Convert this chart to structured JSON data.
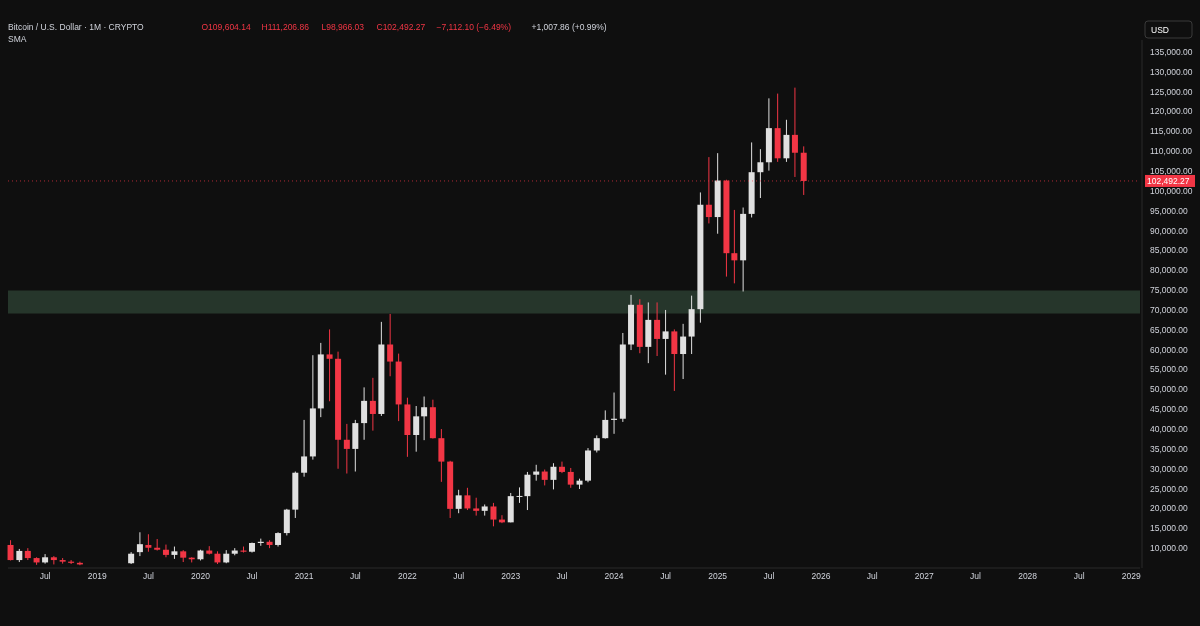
{
  "chart_data": {
    "type": "candlestick",
    "title": "Bitcoin / U.S. Dollar · 1M · CRYPTO",
    "ylabel": "USD",
    "annotations": [
      "O109,604.14",
      "H111,206.86",
      "L98,966.03",
      "C102,492.27",
      "−7,112.10 (−6.49%)",
      "+1,007.86 (+0.99%)",
      "SMA"
    ],
    "x": [
      "2018-03",
      "2018-04",
      "2018-05",
      "2018-06",
      "2018-07",
      "2018-08",
      "2018-09",
      "2018-10",
      "2018-11",
      "2019-05",
      "2019-06",
      "2019-07",
      "2019-08",
      "2019-09",
      "2019-10",
      "2019-11",
      "2019-12",
      "2020-01",
      "2020-02",
      "2020-03",
      "2020-04",
      "2020-05",
      "2020-06",
      "2020-07",
      "2020-08",
      "2020-09",
      "2020-10",
      "2020-11",
      "2020-12",
      "2021-01",
      "2021-02",
      "2021-03",
      "2021-04",
      "2021-05",
      "2021-06",
      "2021-07",
      "2021-08",
      "2021-09",
      "2021-10",
      "2021-11",
      "2021-12",
      "2022-01",
      "2022-02",
      "2022-03",
      "2022-04",
      "2022-05",
      "2022-06",
      "2022-07",
      "2022-08",
      "2022-09",
      "2022-10",
      "2022-11",
      "2022-12",
      "2023-01",
      "2023-02",
      "2023-03",
      "2023-04",
      "2023-05",
      "2023-06",
      "2023-07",
      "2023-08",
      "2023-09",
      "2023-10",
      "2023-11",
      "2023-12",
      "2024-01",
      "2024-02",
      "2024-03",
      "2024-04",
      "2024-05",
      "2024-06",
      "2024-07",
      "2024-08",
      "2024-09",
      "2024-10",
      "2024-11",
      "2024-12",
      "2025-01",
      "2025-02",
      "2025-03",
      "2025-04",
      "2025-05",
      "2025-06",
      "2025-07",
      "2025-08",
      "2025-09",
      "2025-10",
      "2025-11"
    ],
    "ohlc": [
      [
        10800,
        12000,
        6900,
        7000
      ],
      [
        7000,
        9800,
        6500,
        9300
      ],
      [
        9300,
        10000,
        7000,
        7500
      ],
      [
        7500,
        7700,
        5800,
        6400
      ],
      [
        6400,
        8500,
        6100,
        7700
      ],
      [
        7700,
        8000,
        5900,
        7000
      ],
      [
        7000,
        7500,
        6100,
        6600
      ],
      [
        6600,
        7000,
        6000,
        6300
      ],
      [
        6300,
        6600,
        5700,
        5900
      ],
      [
        6200,
        9000,
        6000,
        8600
      ],
      [
        9000,
        14000,
        8000,
        11000
      ],
      [
        10800,
        13500,
        9100,
        10100
      ],
      [
        10100,
        12300,
        9400,
        9600
      ],
      [
        9600,
        10900,
        7700,
        8300
      ],
      [
        8300,
        10400,
        7300,
        9200
      ],
      [
        9200,
        9500,
        6500,
        7600
      ],
      [
        7600,
        7700,
        6400,
        7200
      ],
      [
        7200,
        9600,
        6900,
        9400
      ],
      [
        9400,
        10500,
        8400,
        8600
      ],
      [
        8600,
        9200,
        6000,
        6400
      ],
      [
        6400,
        9500,
        6200,
        8600
      ],
      [
        8600,
        10000,
        8200,
        9400
      ],
      [
        9400,
        10400,
        8900,
        9100
      ],
      [
        9100,
        11400,
        8900,
        11300
      ],
      [
        11300,
        12400,
        10600,
        11600
      ],
      [
        11600,
        12000,
        10000,
        10800
      ],
      [
        10800,
        14000,
        10400,
        13800
      ],
      [
        13800,
        19900,
        13200,
        19700
      ],
      [
        19700,
        29300,
        17600,
        29000
      ],
      [
        29000,
        42300,
        28000,
        33100
      ],
      [
        33100,
        58600,
        32300,
        45200
      ],
      [
        45200,
        61700,
        43000,
        58800
      ],
      [
        58800,
        65100,
        47000,
        57700
      ],
      [
        57700,
        59500,
        30000,
        37300
      ],
      [
        37300,
        41300,
        28800,
        35000
      ],
      [
        35000,
        42300,
        29300,
        41500
      ],
      [
        41500,
        50500,
        37300,
        47100
      ],
      [
        47100,
        52900,
        39600,
        43800
      ],
      [
        43800,
        67000,
        43300,
        61300
      ],
      [
        61300,
        69000,
        53300,
        57000
      ],
      [
        57000,
        59000,
        42000,
        46200
      ],
      [
        46200,
        47900,
        33000,
        38500
      ],
      [
        38500,
        45800,
        34300,
        43200
      ],
      [
        43200,
        48200,
        37200,
        45500
      ],
      [
        45500,
        47400,
        37600,
        37700
      ],
      [
        37700,
        40000,
        26700,
        31800
      ],
      [
        31800,
        32000,
        17600,
        19900
      ],
      [
        19900,
        24700,
        18800,
        23300
      ],
      [
        23300,
        25200,
        19600,
        20000
      ],
      [
        20000,
        22700,
        18200,
        19400
      ],
      [
        19400,
        21000,
        18200,
        20500
      ],
      [
        20500,
        21400,
        15500,
        17200
      ],
      [
        17200,
        18300,
        16300,
        16500
      ],
      [
        16500,
        23900,
        16500,
        23100
      ],
      [
        23100,
        25300,
        21400,
        23150
      ],
      [
        23100,
        29200,
        19600,
        28500
      ],
      [
        28500,
        31000,
        27000,
        29300
      ],
      [
        29300,
        29800,
        25800,
        27200
      ],
      [
        27200,
        31400,
        24800,
        30500
      ],
      [
        30500,
        31800,
        28900,
        29200
      ],
      [
        29200,
        30200,
        25200,
        26000
      ],
      [
        26000,
        27500,
        24900,
        27000
      ],
      [
        27000,
        35200,
        26600,
        34600
      ],
      [
        34600,
        38400,
        34100,
        37700
      ],
      [
        37700,
        44700,
        37600,
        42300
      ],
      [
        42300,
        49200,
        38800,
        42600
      ],
      [
        42600,
        64200,
        41800,
        61300
      ],
      [
        61300,
        73800,
        59900,
        71300
      ],
      [
        71300,
        72700,
        59100,
        60700
      ],
      [
        60700,
        71900,
        56600,
        67500
      ],
      [
        67500,
        71900,
        58400,
        62700
      ],
      [
        62700,
        70000,
        53700,
        64600
      ],
      [
        64600,
        65100,
        49600,
        58900
      ],
      [
        58900,
        66500,
        52600,
        63300
      ],
      [
        63300,
        73600,
        58900,
        70200
      ],
      [
        70200,
        99600,
        66800,
        96500
      ],
      [
        96500,
        108500,
        91800,
        93400
      ],
      [
        93400,
        109500,
        89200,
        102600
      ],
      [
        102600,
        102800,
        78400,
        84300
      ],
      [
        84300,
        95200,
        76700,
        82500
      ],
      [
        82500,
        95800,
        74650,
        94200
      ],
      [
        94200,
        112200,
        93300,
        104700
      ],
      [
        104700,
        110500,
        98200,
        107200
      ],
      [
        107200,
        123300,
        105100,
        115800
      ],
      [
        115800,
        124500,
        107300,
        108200
      ],
      [
        108200,
        117900,
        107300,
        114100
      ],
      [
        114100,
        126000,
        103500,
        109600
      ],
      [
        109604.14,
        111206.86,
        98966.03,
        102492.27
      ]
    ],
    "xlim": [
      "2018-02-20",
      "2029-02-01"
    ],
    "xticks": [
      {
        "value": "2018-07",
        "label": "Jul"
      },
      {
        "value": "2019-01",
        "label": "2019"
      },
      {
        "value": "2019-07",
        "label": "Jul"
      },
      {
        "value": "2020-01",
        "label": "2020"
      },
      {
        "value": "2020-07",
        "label": "Jul"
      },
      {
        "value": "2021-01",
        "label": "2021"
      },
      {
        "value": "2021-07",
        "label": "Jul"
      },
      {
        "value": "2022-01",
        "label": "2022"
      },
      {
        "value": "2022-07",
        "label": "Jul"
      },
      {
        "value": "2023-01",
        "label": "2023"
      },
      {
        "value": "2023-07",
        "label": "Jul"
      },
      {
        "value": "2024-01",
        "label": "2024"
      },
      {
        "value": "2024-07",
        "label": "Jul"
      },
      {
        "value": "2025-01",
        "label": "2025"
      },
      {
        "value": "2025-07",
        "label": "Jul"
      },
      {
        "value": "2026-01",
        "label": "2026"
      },
      {
        "value": "2026-07",
        "label": "Jul"
      },
      {
        "value": "2027-01",
        "label": "2027"
      },
      {
        "value": "2027-07",
        "label": "Jul"
      },
      {
        "value": "2028-01",
        "label": "2028"
      },
      {
        "value": "2028-07",
        "label": "Jul"
      },
      {
        "value": "2029-01",
        "label": "2029"
      }
    ],
    "ylim": [
      5000,
      138000
    ],
    "yticks": [
      {
        "value": 10000,
        "label": "10,000.00"
      },
      {
        "value": 15000,
        "label": "15,000.00"
      },
      {
        "value": 20000,
        "label": "20,000.00"
      },
      {
        "value": 25000,
        "label": "25,000.00"
      },
      {
        "value": 30000,
        "label": "30,000.00"
      },
      {
        "value": 35000,
        "label": "35,000.00"
      },
      {
        "value": 40000,
        "label": "40,000.00"
      },
      {
        "value": 45000,
        "label": "45,000.00"
      },
      {
        "value": 50000,
        "label": "50,000.00"
      },
      {
        "value": 55000,
        "label": "55,000.00"
      },
      {
        "value": 60000,
        "label": "60,000.00"
      },
      {
        "value": 65000,
        "label": "65,000.00"
      },
      {
        "value": 70000,
        "label": "70,000.00"
      },
      {
        "value": 75000,
        "label": "75,000.00"
      },
      {
        "value": 80000,
        "label": "80,000.00"
      },
      {
        "value": 85000,
        "label": "85,000.00"
      },
      {
        "value": 90000,
        "label": "90,000.00"
      },
      {
        "value": 95000,
        "label": "95,000.00"
      },
      {
        "value": 100000,
        "label": "100,000.00"
      },
      {
        "value": 105000,
        "label": "105,000.00"
      },
      {
        "value": 110000,
        "label": "110,000.00"
      },
      {
        "value": 115000,
        "label": "115,000.00"
      },
      {
        "value": 120000,
        "label": "120,000.00"
      },
      {
        "value": 125000,
        "label": "125,000.00"
      },
      {
        "value": 130000,
        "label": "130,000.00"
      },
      {
        "value": 135000,
        "label": "135,000.00"
      }
    ],
    "ref_lines": [
      {
        "axis": "y",
        "value": 102492.27,
        "label": "102,492.27",
        "color": "#f23645"
      }
    ],
    "bands": [
      {
        "axis": "y",
        "from": 69100,
        "to": 74900,
        "color": "#2a3d30"
      }
    ]
  }
}
